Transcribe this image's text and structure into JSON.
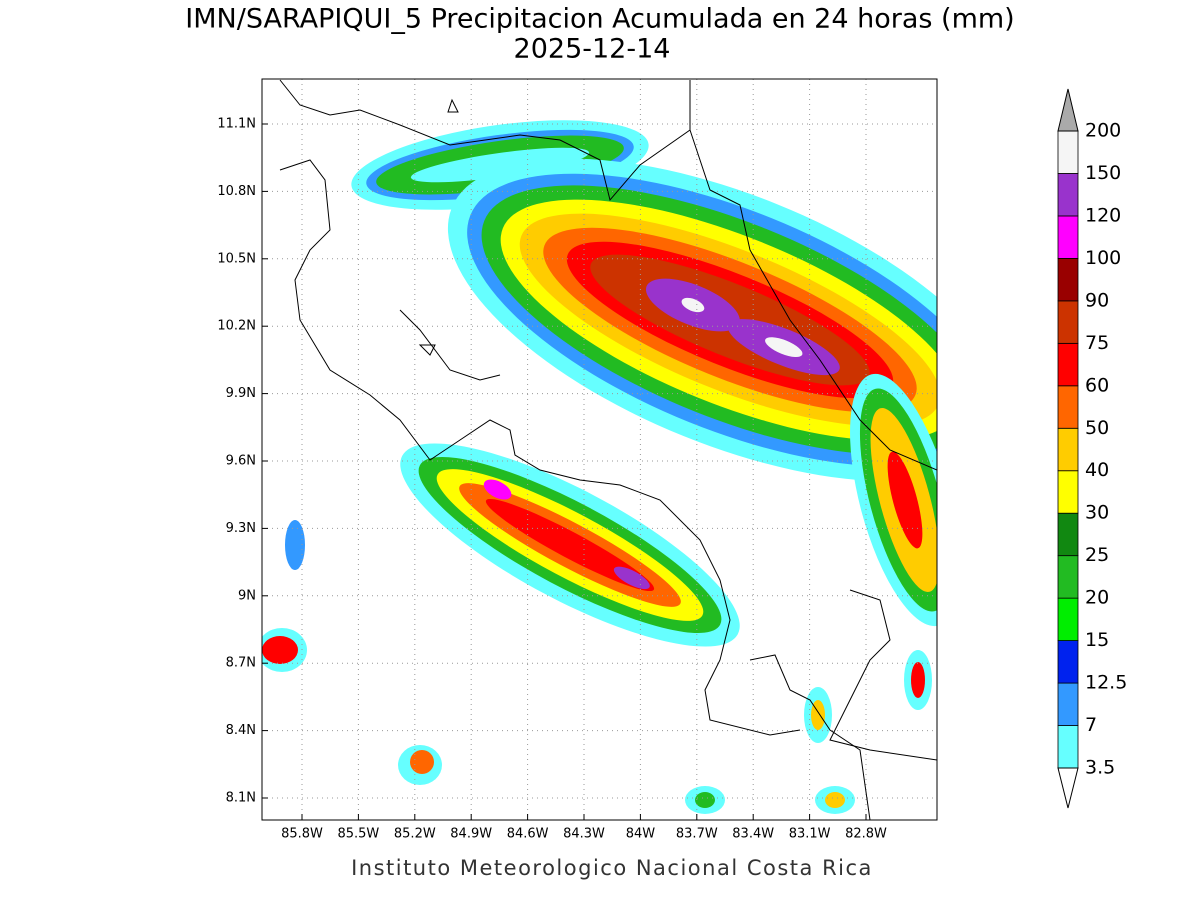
{
  "title": "IMN/SARAPIQUI_5 Precipitacion Acumulada en 24 horas (mm)",
  "date": "2025-12-14",
  "map": {
    "lat_ticks": [
      "11.1N",
      "10.8N",
      "10.5N",
      "10.2N",
      "9.9N",
      "9.6N",
      "9.3N",
      "9N",
      "8.7N",
      "8.4N",
      "8.1N"
    ],
    "lon_ticks": [
      "85.8W",
      "85.5W",
      "85.2W",
      "84.9W",
      "84.6W",
      "84.3W",
      "84W",
      "83.7W",
      "83.4W",
      "83.1W",
      "82.8W"
    ]
  },
  "colorbar": {
    "levels": [
      3.5,
      7,
      12.5,
      15,
      20,
      25,
      30,
      40,
      50,
      60,
      75,
      90,
      100,
      120,
      150,
      200
    ],
    "colors": [
      "#66ffff",
      "#3399ff",
      "#0022ee",
      "#00ee00",
      "#22bb22",
      "#118811",
      "#ffff00",
      "#ffcc00",
      "#ff6600",
      "#ff0000",
      "#cc3300",
      "#990000",
      "#ff00ff",
      "#9933cc",
      "#f5f5f5"
    ],
    "under_color": "#ffffff",
    "over_color": "#aaaaaa"
  },
  "footer": "Instituto Meteorologico Nacional Costa Rica"
}
